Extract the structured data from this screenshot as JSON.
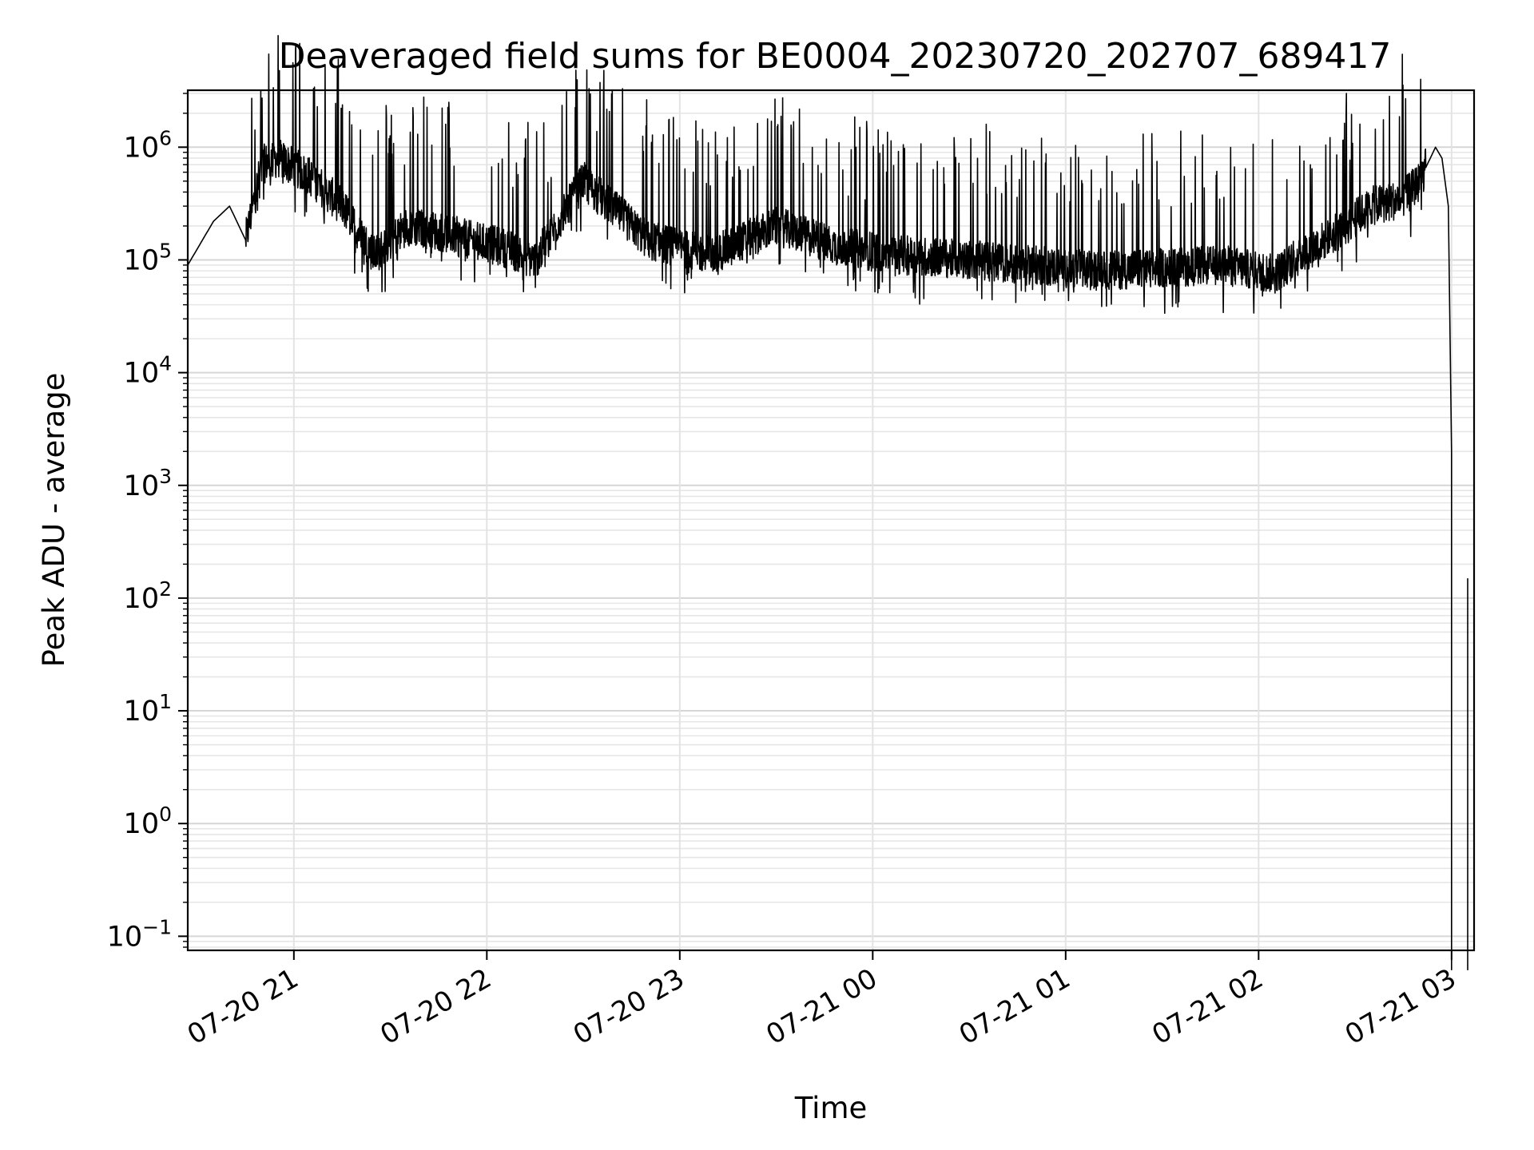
{
  "chart_data": {
    "type": "line",
    "title": "Deaveraged field sums for BE0004_20230720_202707_689417",
    "xlabel": "Time",
    "ylabel": "Peak ADU - average",
    "y_scale": "log",
    "grid": true,
    "legend": "none",
    "xlim": [
      "2023-07-20 20:27",
      "2023-07-21 03:07"
    ],
    "ylim": [
      0.075,
      3200000
    ],
    "x_ticks": [
      {
        "label": "07-20 21",
        "value": "2023-07-20 21:00"
      },
      {
        "label": "07-20 22",
        "value": "2023-07-20 22:00"
      },
      {
        "label": "07-20 23",
        "value": "2023-07-20 23:00"
      },
      {
        "label": "07-21 00",
        "value": "2023-07-21 00:00"
      },
      {
        "label": "07-21 01",
        "value": "2023-07-21 01:00"
      },
      {
        "label": "07-21 02",
        "value": "2023-07-21 02:00"
      },
      {
        "label": "07-21 03",
        "value": "2023-07-21 03:00"
      }
    ],
    "y_ticks": [
      {
        "base": "10",
        "exp": "6",
        "value": 1000000
      },
      {
        "base": "10",
        "exp": "5",
        "value": 100000
      },
      {
        "base": "10",
        "exp": "4",
        "value": 10000
      },
      {
        "base": "10",
        "exp": "3",
        "value": 1000
      },
      {
        "base": "10",
        "exp": "2",
        "value": 100
      },
      {
        "base": "10",
        "exp": "1",
        "value": 10
      },
      {
        "base": "10",
        "exp": "0",
        "value": 1
      },
      {
        "base": "10",
        "exp": "−1",
        "value": 0.1
      }
    ],
    "series": [
      {
        "color": "#000000",
        "x": [
          "2023-07-20 20:27",
          "2023-07-20 20:35",
          "2023-07-20 20:40",
          "2023-07-20 20:45",
          "2023-07-20 20:50",
          "2023-07-20 20:55",
          "2023-07-20 21:05",
          "2023-07-20 21:15",
          "2023-07-20 21:25",
          "2023-07-20 21:35",
          "2023-07-20 21:45",
          "2023-07-20 21:55",
          "2023-07-20 22:05",
          "2023-07-20 22:15",
          "2023-07-20 22:30",
          "2023-07-20 22:50",
          "2023-07-20 23:10",
          "2023-07-20 23:30",
          "2023-07-20 23:50",
          "2023-07-21 00:10",
          "2023-07-21 00:30",
          "2023-07-21 00:50",
          "2023-07-21 01:10",
          "2023-07-21 01:30",
          "2023-07-21 01:50",
          "2023-07-21 02:05",
          "2023-07-21 02:15",
          "2023-07-21 02:25",
          "2023-07-21 02:35",
          "2023-07-21 02:45",
          "2023-07-21 02:50",
          "2023-07-21 02:55",
          "2023-07-21 02:57",
          "2023-07-21 02:59",
          "2023-07-21 03:00",
          "2023-07-21 03:00"
        ],
        "y": [
          90000,
          220000,
          300000,
          150000,
          700000,
          800000,
          550000,
          300000,
          110000,
          200000,
          180000,
          150000,
          130000,
          100000,
          500000,
          150000,
          110000,
          200000,
          130000,
          110000,
          100000,
          90000,
          80000,
          85000,
          90000,
          75000,
          120000,
          180000,
          300000,
          350000,
          500000,
          1000000,
          800000,
          300000,
          2000,
          0.05
        ]
      },
      {
        "color": "#000000",
        "x": [
          "2023-07-21 03:05",
          "2023-07-21 03:05"
        ],
        "y": [
          0.05,
          150
        ]
      }
    ]
  }
}
